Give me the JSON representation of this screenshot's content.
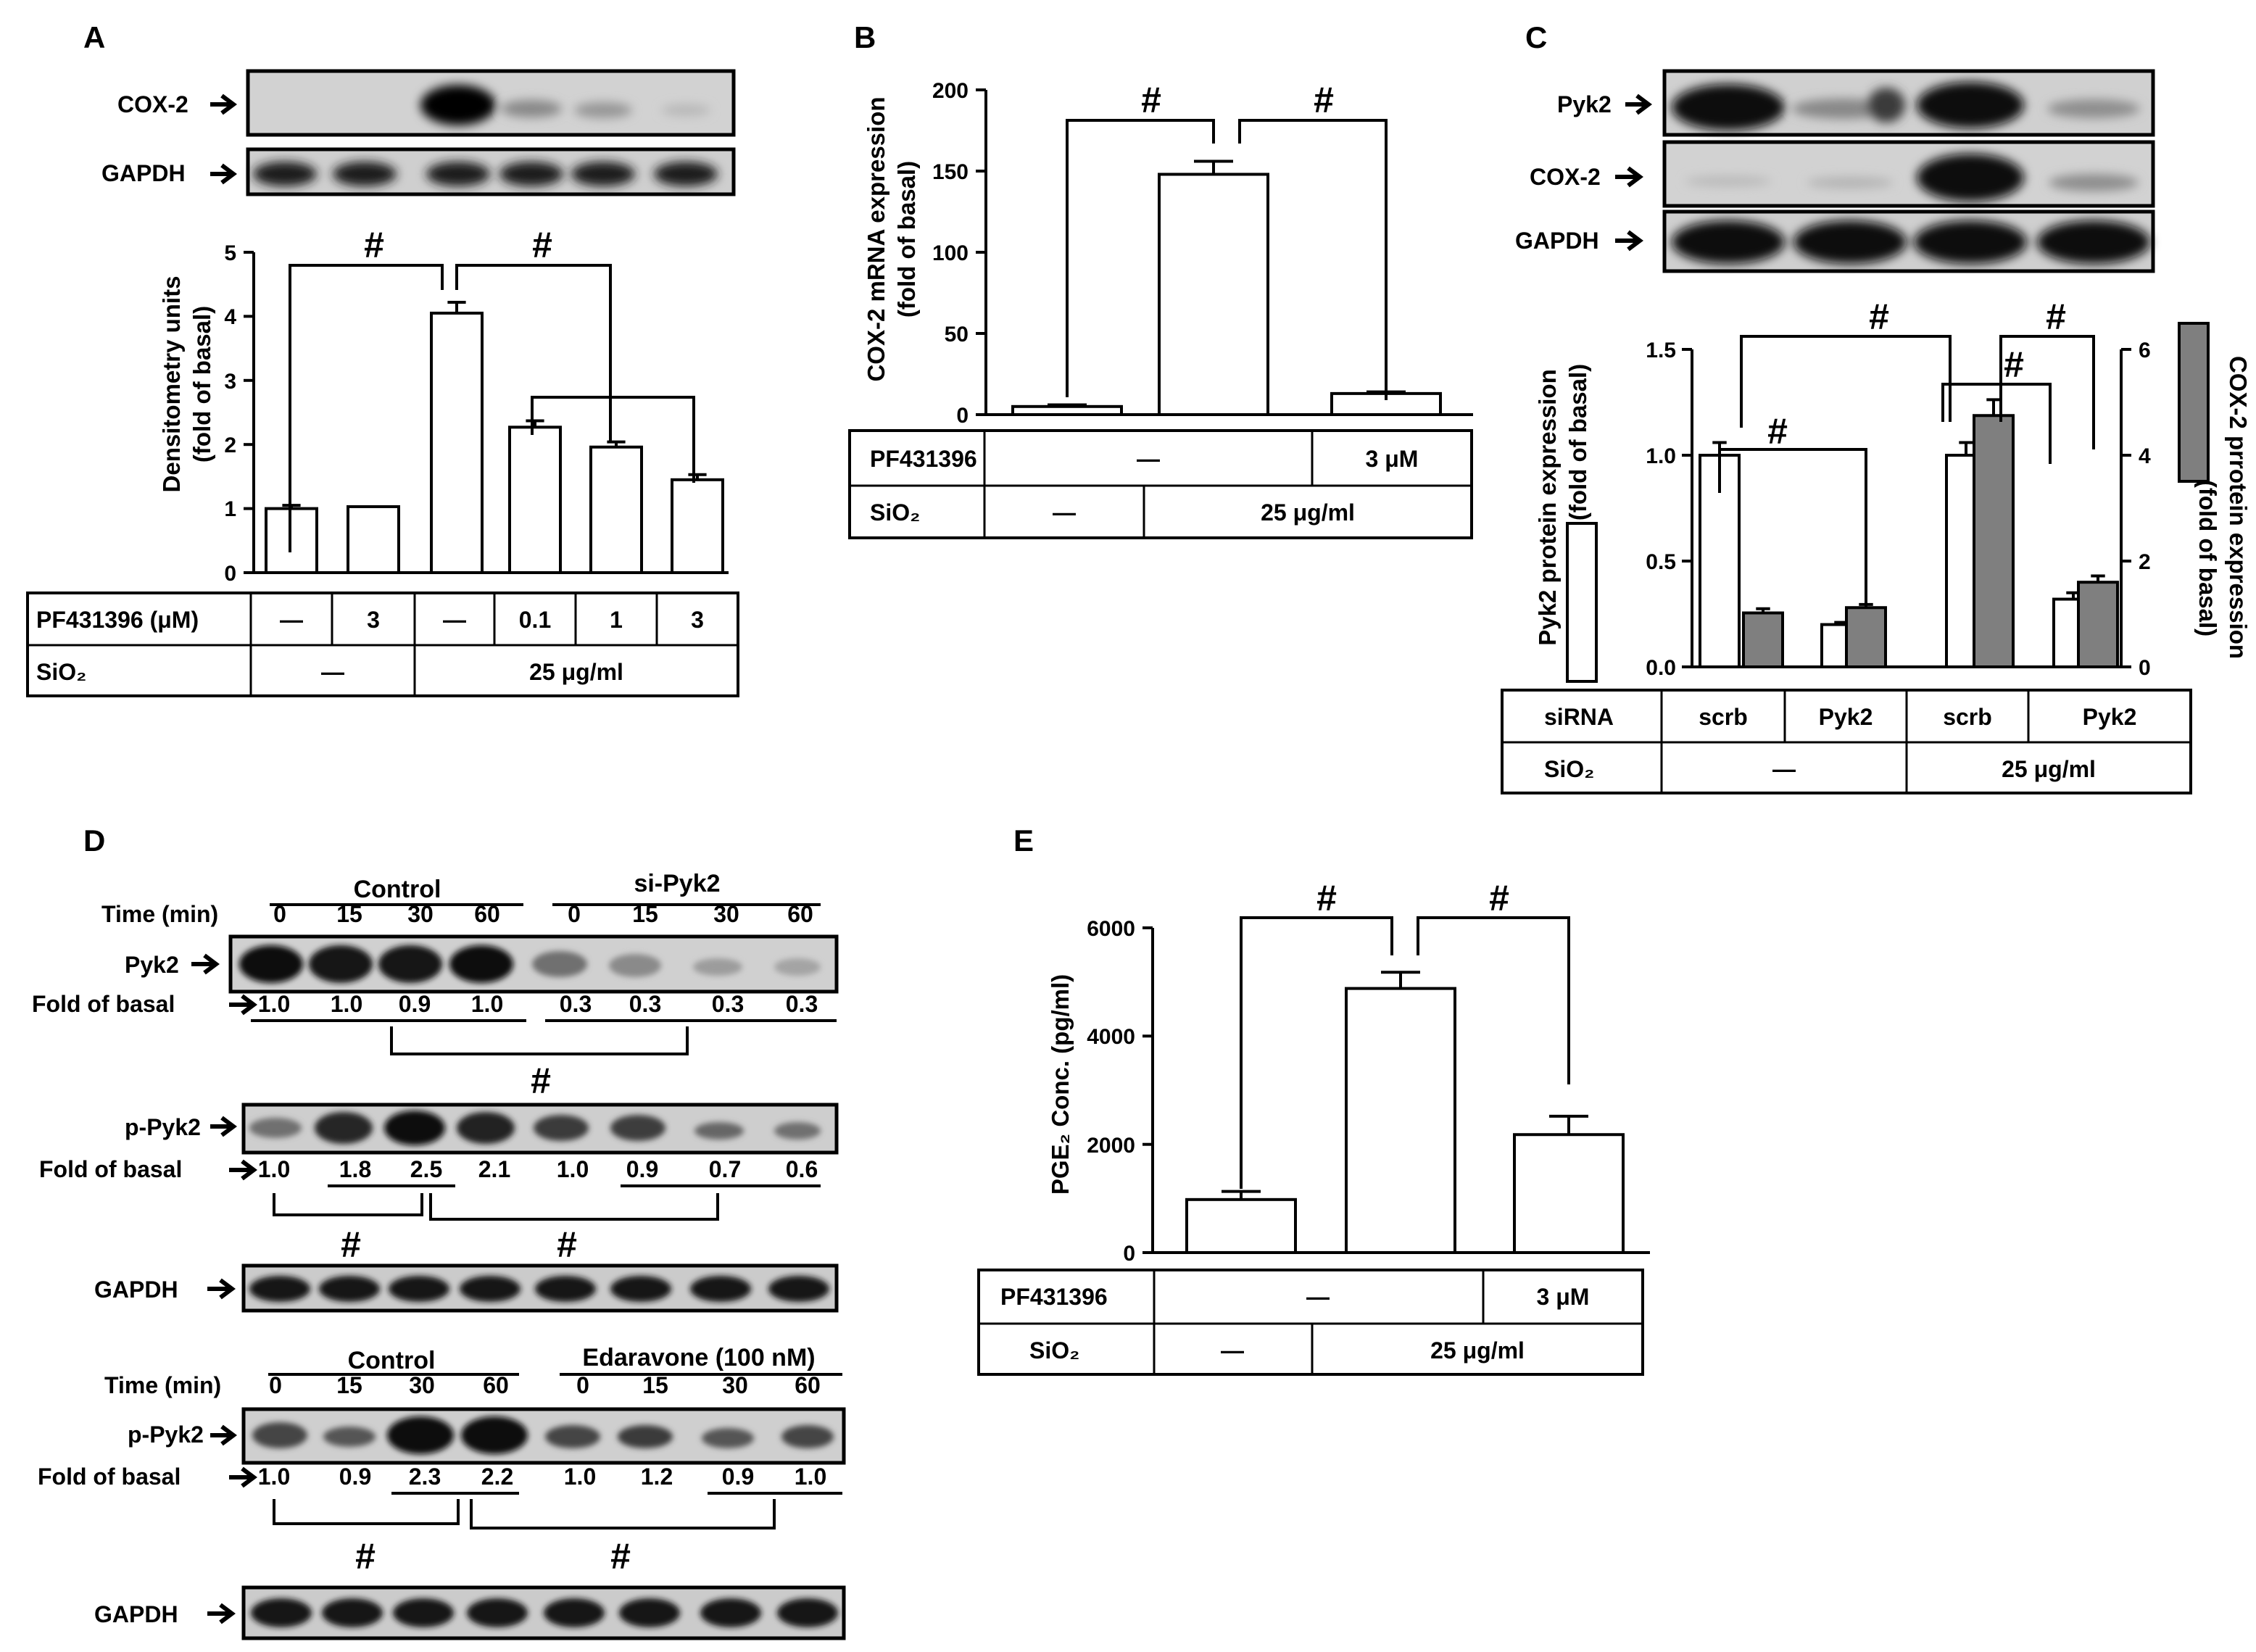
{
  "panels": {
    "A": {
      "letter": "A",
      "blot_labels": [
        "COX-2",
        "GAPDH"
      ],
      "ylabel_line1": "Densitometry units",
      "ylabel_line2": "(fold of basal)",
      "sig": "#",
      "table": {
        "row1_label": "PF431396 (μM)",
        "row1_values": [
          "—",
          "3",
          "—",
          "0.1",
          "1",
          "3"
        ],
        "row2_label": "SiO₂",
        "row2_values": [
          "—",
          "25 μg/ml"
        ]
      }
    },
    "B": {
      "letter": "B",
      "ylabel_line1": "COX-2 mRNA expression",
      "ylabel_line2": "(fold of basal)",
      "sig": "#",
      "table": {
        "row1_label": "PF431396",
        "row1_values": [
          "—",
          "3 μM"
        ],
        "row2_label": "SiO₂",
        "row2_values": [
          "—",
          "25 μg/ml"
        ]
      }
    },
    "C": {
      "letter": "C",
      "blot_labels": [
        "Pyk2",
        "COX-2",
        "GAPDH"
      ],
      "ylabel_left_line1": "Pyk2  protein expression",
      "ylabel_left_line2": "(fold of basal)",
      "ylabel_right_line1": "COX-2 prrotein expression",
      "ylabel_right_line2": "(fold of basal)",
      "sig": "#",
      "table": {
        "row1_label": "siRNA",
        "row1_values": [
          "scrb",
          "Pyk2",
          "scrb",
          "Pyk2"
        ],
        "row2_label": "SiO₂",
        "row2_values": [
          "—",
          "25 μg/ml"
        ]
      }
    },
    "D": {
      "letter": "D",
      "group1_title": "Control",
      "group2_title": "si-Pyk2",
      "group3_title": "Control",
      "group4_title": "Edaravone (100 nM)",
      "time_label": "Time (min)",
      "times": [
        "0",
        "15",
        "30",
        "60",
        "0",
        "15",
        "30",
        "60"
      ],
      "row_labels": [
        "Pyk2",
        "p-Pyk2",
        "GAPDH",
        "p-Pyk2",
        "GAPDH"
      ],
      "fold_label": "Fold of basal",
      "fold_pyk2": [
        "1.0",
        "1.0",
        "0.9",
        "1.0",
        "0.3",
        "0.3",
        "0.3",
        "0.3"
      ],
      "fold_ppyk2_a": [
        "1.0",
        "1.8",
        "2.5",
        "2.1",
        "1.0",
        "0.9",
        "0.7",
        "0.6"
      ],
      "fold_ppyk2_b": [
        "1.0",
        "0.9",
        "2.3",
        "2.2",
        "1.0",
        "1.2",
        "0.9",
        "1.0"
      ],
      "sig": "#"
    },
    "E": {
      "letter": "E",
      "ylabel": "PGE₂ Conc. (pg/ml)",
      "sig": "#",
      "table": {
        "row1_label": "PF431396",
        "row1_values": [
          "—",
          "3 μM"
        ],
        "row2_label": "SiO₂",
        "row2_values": [
          "—",
          "25 μg/ml"
        ]
      }
    }
  },
  "chart_data": [
    {
      "panel": "A",
      "type": "bar",
      "categories": [
        "—/—",
        "3/—",
        "—/25",
        "0.1/25",
        "1/25",
        "3/25"
      ],
      "values": [
        1.0,
        1.03,
        4.05,
        2.27,
        1.96,
        1.45
      ],
      "errors": [
        0.05,
        0.0,
        0.17,
        0.1,
        0.08,
        0.08
      ],
      "yticks": [
        "0",
        "1",
        "2",
        "3",
        "4",
        "5"
      ],
      "ylim": [
        0,
        5
      ]
    },
    {
      "panel": "B",
      "type": "bar",
      "categories": [
        "—/—",
        "—/25",
        "3/25"
      ],
      "values": [
        5,
        148,
        13
      ],
      "errors": [
        1,
        8,
        1
      ],
      "yticks": [
        "0",
        "50",
        "100",
        "150",
        "200"
      ],
      "ylim": [
        0,
        200
      ]
    },
    {
      "panel": "C",
      "type": "bar",
      "categories": [
        "scrb/—",
        "Pyk2/—",
        "scrb/25",
        "Pyk2/25"
      ],
      "series": [
        {
          "values": [
            1.0,
            0.2,
            1.0,
            0.32
          ],
          "errors": [
            0.06,
            0.01,
            0.06,
            0.03
          ],
          "color": "#ffffff"
        },
        {
          "values": [
            1.02,
            1.12,
            4.75,
            1.6
          ],
          "errors": [
            0.08,
            0.06,
            0.3,
            0.12
          ],
          "color": "#7f7f7f"
        }
      ],
      "yticks_left": [
        "0.0",
        "0.5",
        "1.0",
        "1.5"
      ],
      "ylim_left": [
        0,
        1.5
      ],
      "yticks_right": [
        "0",
        "2",
        "4",
        "6"
      ],
      "ylim_right": [
        0,
        6
      ]
    },
    {
      "panel": "E",
      "type": "bar",
      "categories": [
        "—/—",
        "—/25",
        "3/25"
      ],
      "values": [
        980,
        4880,
        2180
      ],
      "errors": [
        150,
        300,
        340
      ],
      "yticks": [
        "0",
        "2000",
        "4000",
        "6000"
      ],
      "ylim": [
        0,
        6000
      ]
    }
  ]
}
